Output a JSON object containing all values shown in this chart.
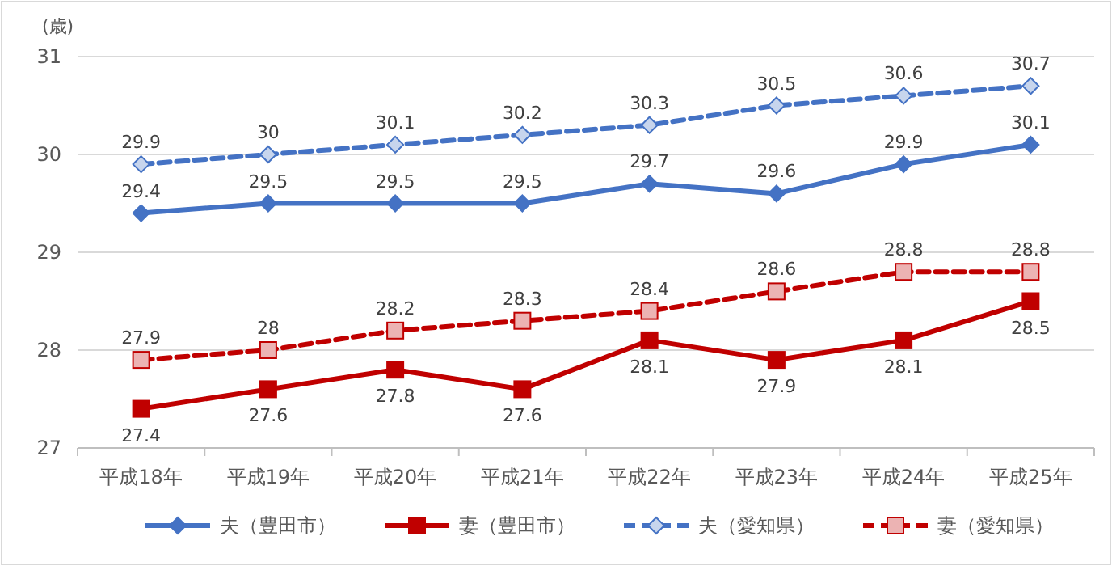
{
  "chart_data": {
    "type": "line",
    "ylabel": "(歳)",
    "categories": [
      "平成18年",
      "平成19年",
      "平成20年",
      "平成21年",
      "平成22年",
      "平成23年",
      "平成24年",
      "平成25年"
    ],
    "series": [
      {
        "name": "夫（豊田市）",
        "color": "#4472c4",
        "marker": "diamond",
        "line_style": "solid",
        "values": [
          29.4,
          29.5,
          29.5,
          29.5,
          29.7,
          29.6,
          29.9,
          30.1
        ]
      },
      {
        "name": "妻（豊田市）",
        "color": "#c00000",
        "marker": "square",
        "line_style": "solid",
        "values": [
          27.4,
          27.6,
          27.8,
          27.6,
          28.1,
          27.9,
          28.1,
          28.5
        ]
      },
      {
        "name": "夫（愛知県）",
        "color": "#4472c4",
        "marker": "diamond",
        "line_style": "dashed",
        "values": [
          29.9,
          30,
          30.1,
          30.2,
          30.3,
          30.5,
          30.6,
          30.7
        ]
      },
      {
        "name": "妻（愛知県）",
        "color": "#c00000",
        "marker": "square",
        "line_style": "dashed",
        "values": [
          27.9,
          28,
          28.2,
          28.3,
          28.4,
          28.6,
          28.8,
          28.8
        ]
      }
    ],
    "ylim": [
      27,
      31
    ],
    "yticks": [
      27,
      28,
      29,
      30,
      31
    ],
    "grid": "y",
    "legend": "bottom",
    "data_labels": true
  }
}
